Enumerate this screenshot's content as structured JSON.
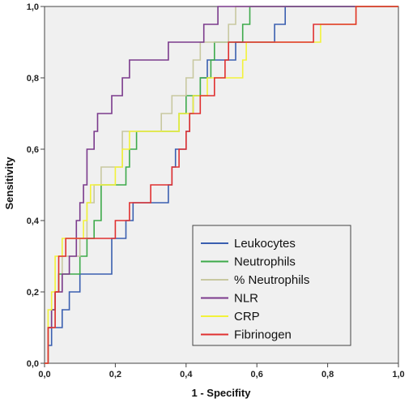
{
  "chart_data": {
    "type": "line",
    "title": "",
    "xlabel": "1 - Specifity",
    "ylabel": "Sensitivity",
    "xlim": [
      0,
      1
    ],
    "ylim": [
      0,
      1
    ],
    "xticks": [
      "0,0",
      "0,2",
      "0,4",
      "0,6",
      "0,8",
      "1,0"
    ],
    "yticks": [
      "0,0",
      "0,2",
      "0,4",
      "0,6",
      "0,8",
      "1,0"
    ],
    "grid": false,
    "legend_position": "bottom-right",
    "plot_background": "#f0f0f0",
    "series": [
      {
        "name": "Leukocytes",
        "color": "#3a5fb0",
        "points": [
          [
            0,
            0
          ],
          [
            0.01,
            0
          ],
          [
            0.01,
            0.05
          ],
          [
            0.02,
            0.05
          ],
          [
            0.02,
            0.1
          ],
          [
            0.05,
            0.1
          ],
          [
            0.05,
            0.15
          ],
          [
            0.07,
            0.15
          ],
          [
            0.07,
            0.2
          ],
          [
            0.1,
            0.2
          ],
          [
            0.1,
            0.25
          ],
          [
            0.19,
            0.25
          ],
          [
            0.19,
            0.35
          ],
          [
            0.23,
            0.35
          ],
          [
            0.23,
            0.4
          ],
          [
            0.25,
            0.4
          ],
          [
            0.25,
            0.45
          ],
          [
            0.35,
            0.45
          ],
          [
            0.35,
            0.5
          ],
          [
            0.36,
            0.5
          ],
          [
            0.36,
            0.55
          ],
          [
            0.37,
            0.55
          ],
          [
            0.37,
            0.6
          ],
          [
            0.4,
            0.6
          ],
          [
            0.4,
            0.65
          ],
          [
            0.41,
            0.65
          ],
          [
            0.41,
            0.7
          ],
          [
            0.42,
            0.7
          ],
          [
            0.42,
            0.75
          ],
          [
            0.44,
            0.75
          ],
          [
            0.44,
            0.8
          ],
          [
            0.46,
            0.8
          ],
          [
            0.46,
            0.85
          ],
          [
            0.54,
            0.85
          ],
          [
            0.54,
            0.9
          ],
          [
            0.65,
            0.9
          ],
          [
            0.65,
            0.95
          ],
          [
            0.68,
            0.95
          ],
          [
            0.68,
            1.0
          ],
          [
            1,
            1
          ]
        ]
      },
      {
        "name": "Neutrophils",
        "color": "#3daa4a",
        "points": [
          [
            0,
            0
          ],
          [
            0.01,
            0
          ],
          [
            0.01,
            0.1
          ],
          [
            0.02,
            0.1
          ],
          [
            0.02,
            0.15
          ],
          [
            0.03,
            0.15
          ],
          [
            0.03,
            0.2
          ],
          [
            0.04,
            0.2
          ],
          [
            0.04,
            0.25
          ],
          [
            0.1,
            0.25
          ],
          [
            0.1,
            0.3
          ],
          [
            0.12,
            0.3
          ],
          [
            0.12,
            0.35
          ],
          [
            0.14,
            0.35
          ],
          [
            0.14,
            0.4
          ],
          [
            0.16,
            0.4
          ],
          [
            0.16,
            0.5
          ],
          [
            0.23,
            0.5
          ],
          [
            0.23,
            0.55
          ],
          [
            0.24,
            0.55
          ],
          [
            0.24,
            0.6
          ],
          [
            0.26,
            0.6
          ],
          [
            0.26,
            0.65
          ],
          [
            0.38,
            0.65
          ],
          [
            0.38,
            0.7
          ],
          [
            0.4,
            0.7
          ],
          [
            0.4,
            0.75
          ],
          [
            0.44,
            0.75
          ],
          [
            0.44,
            0.8
          ],
          [
            0.47,
            0.8
          ],
          [
            0.47,
            0.85
          ],
          [
            0.48,
            0.85
          ],
          [
            0.48,
            0.9
          ],
          [
            0.56,
            0.9
          ],
          [
            0.56,
            0.95
          ],
          [
            0.58,
            0.95
          ],
          [
            0.58,
            1.0
          ],
          [
            1,
            1
          ]
        ]
      },
      {
        "name": "% Neutrophils",
        "color": "#c8c8a0",
        "points": [
          [
            0,
            0
          ],
          [
            0.01,
            0
          ],
          [
            0.01,
            0.1
          ],
          [
            0.03,
            0.1
          ],
          [
            0.03,
            0.2
          ],
          [
            0.05,
            0.2
          ],
          [
            0.05,
            0.3
          ],
          [
            0.1,
            0.3
          ],
          [
            0.1,
            0.35
          ],
          [
            0.12,
            0.35
          ],
          [
            0.12,
            0.45
          ],
          [
            0.14,
            0.45
          ],
          [
            0.14,
            0.5
          ],
          [
            0.16,
            0.5
          ],
          [
            0.16,
            0.55
          ],
          [
            0.22,
            0.55
          ],
          [
            0.22,
            0.65
          ],
          [
            0.33,
            0.65
          ],
          [
            0.33,
            0.7
          ],
          [
            0.36,
            0.7
          ],
          [
            0.36,
            0.75
          ],
          [
            0.4,
            0.75
          ],
          [
            0.4,
            0.8
          ],
          [
            0.42,
            0.8
          ],
          [
            0.42,
            0.85
          ],
          [
            0.44,
            0.85
          ],
          [
            0.44,
            0.9
          ],
          [
            0.52,
            0.9
          ],
          [
            0.52,
            0.95
          ],
          [
            0.54,
            0.95
          ],
          [
            0.54,
            1.0
          ],
          [
            1,
            1
          ]
        ]
      },
      {
        "name": "NLR",
        "color": "#7b3a8c",
        "points": [
          [
            0,
            0
          ],
          [
            0.01,
            0
          ],
          [
            0.01,
            0.1
          ],
          [
            0.02,
            0.1
          ],
          [
            0.02,
            0.15
          ],
          [
            0.03,
            0.15
          ],
          [
            0.03,
            0.2
          ],
          [
            0.05,
            0.2
          ],
          [
            0.05,
            0.25
          ],
          [
            0.07,
            0.25
          ],
          [
            0.07,
            0.3
          ],
          [
            0.09,
            0.3
          ],
          [
            0.09,
            0.4
          ],
          [
            0.1,
            0.4
          ],
          [
            0.1,
            0.45
          ],
          [
            0.11,
            0.45
          ],
          [
            0.11,
            0.5
          ],
          [
            0.12,
            0.5
          ],
          [
            0.12,
            0.6
          ],
          [
            0.14,
            0.6
          ],
          [
            0.14,
            0.65
          ],
          [
            0.15,
            0.65
          ],
          [
            0.15,
            0.7
          ],
          [
            0.19,
            0.7
          ],
          [
            0.19,
            0.75
          ],
          [
            0.22,
            0.75
          ],
          [
            0.22,
            0.8
          ],
          [
            0.24,
            0.8
          ],
          [
            0.24,
            0.85
          ],
          [
            0.35,
            0.85
          ],
          [
            0.35,
            0.9
          ],
          [
            0.45,
            0.9
          ],
          [
            0.45,
            0.95
          ],
          [
            0.49,
            0.95
          ],
          [
            0.49,
            1.0
          ],
          [
            1,
            1
          ]
        ]
      },
      {
        "name": "CRP",
        "color": "#f2f23a",
        "points": [
          [
            0,
            0
          ],
          [
            0.01,
            0
          ],
          [
            0.01,
            0.15
          ],
          [
            0.02,
            0.15
          ],
          [
            0.02,
            0.2
          ],
          [
            0.03,
            0.2
          ],
          [
            0.03,
            0.3
          ],
          [
            0.05,
            0.3
          ],
          [
            0.05,
            0.35
          ],
          [
            0.11,
            0.35
          ],
          [
            0.11,
            0.4
          ],
          [
            0.12,
            0.4
          ],
          [
            0.12,
            0.45
          ],
          [
            0.13,
            0.45
          ],
          [
            0.13,
            0.5
          ],
          [
            0.2,
            0.5
          ],
          [
            0.2,
            0.55
          ],
          [
            0.22,
            0.55
          ],
          [
            0.22,
            0.6
          ],
          [
            0.24,
            0.6
          ],
          [
            0.24,
            0.65
          ],
          [
            0.38,
            0.65
          ],
          [
            0.38,
            0.7
          ],
          [
            0.42,
            0.7
          ],
          [
            0.42,
            0.75
          ],
          [
            0.46,
            0.75
          ],
          [
            0.46,
            0.8
          ],
          [
            0.56,
            0.8
          ],
          [
            0.56,
            0.85
          ],
          [
            0.57,
            0.85
          ],
          [
            0.57,
            0.9
          ],
          [
            0.78,
            0.9
          ],
          [
            0.78,
            0.95
          ],
          [
            0.88,
            0.95
          ],
          [
            0.88,
            1.0
          ],
          [
            1,
            1
          ]
        ]
      },
      {
        "name": "Fibrinogen",
        "color": "#e03030",
        "points": [
          [
            0,
            0
          ],
          [
            0.01,
            0
          ],
          [
            0.01,
            0.1
          ],
          [
            0.03,
            0.1
          ],
          [
            0.03,
            0.2
          ],
          [
            0.04,
            0.2
          ],
          [
            0.04,
            0.3
          ],
          [
            0.06,
            0.3
          ],
          [
            0.06,
            0.35
          ],
          [
            0.2,
            0.35
          ],
          [
            0.2,
            0.4
          ],
          [
            0.24,
            0.4
          ],
          [
            0.24,
            0.45
          ],
          [
            0.3,
            0.45
          ],
          [
            0.3,
            0.5
          ],
          [
            0.36,
            0.5
          ],
          [
            0.36,
            0.55
          ],
          [
            0.38,
            0.55
          ],
          [
            0.38,
            0.6
          ],
          [
            0.4,
            0.6
          ],
          [
            0.4,
            0.65
          ],
          [
            0.41,
            0.65
          ],
          [
            0.41,
            0.7
          ],
          [
            0.44,
            0.7
          ],
          [
            0.44,
            0.75
          ],
          [
            0.48,
            0.75
          ],
          [
            0.48,
            0.8
          ],
          [
            0.51,
            0.8
          ],
          [
            0.51,
            0.85
          ],
          [
            0.52,
            0.85
          ],
          [
            0.52,
            0.9
          ],
          [
            0.76,
            0.9
          ],
          [
            0.76,
            0.95
          ],
          [
            0.88,
            0.95
          ],
          [
            0.88,
            1.0
          ],
          [
            1,
            1
          ]
        ]
      }
    ]
  }
}
